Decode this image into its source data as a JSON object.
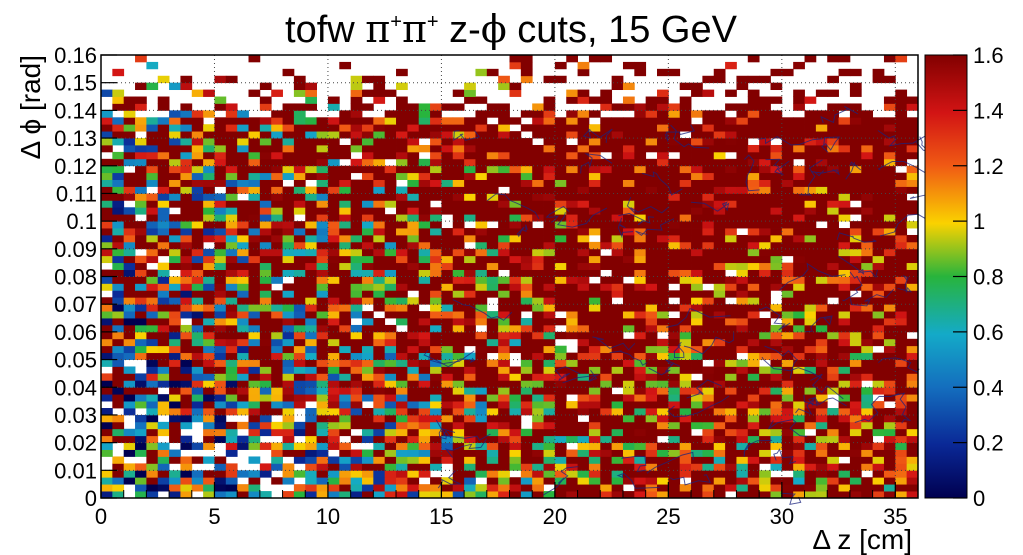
{
  "chart_data": {
    "type": "heatmap",
    "title_parts": {
      "prefix": "tofw ",
      "particle1": "π",
      "sup1": "+",
      "particle2": "π",
      "sup2": "+",
      "middle": "  z-",
      "phi": "ϕ",
      "suffix": " cuts, 15 GeV"
    },
    "xlabel": "Δ z [cm]",
    "ylabel": "Δ ϕ [rad]",
    "xlim": [
      0,
      36
    ],
    "ylim": [
      0,
      0.16
    ],
    "zlim": [
      0,
      1.6
    ],
    "x_ticks": [
      "0",
      "5",
      "10",
      "15",
      "20",
      "25",
      "30",
      "35"
    ],
    "y_ticks": [
      "0",
      "0.01",
      "0.02",
      "0.03",
      "0.04",
      "0.05",
      "0.06",
      "0.07",
      "0.08",
      "0.09",
      "0.1",
      "0.11",
      "0.12",
      "0.13",
      "0.14",
      "0.15",
      "0.16"
    ],
    "z_ticks": [
      "0",
      "0.2",
      "0.4",
      "0.6",
      "0.8",
      "1",
      "1.2",
      "1.4",
      "1.6"
    ],
    "grid": true,
    "colormap": "rainbow",
    "bins": {
      "nx": 72,
      "ny": 64
    },
    "trend": "ratio is low (about 0.2-0.5) at small Δz and small Δϕ, rising to about 1 and above for larger Δz and Δϕ; noisy cells saturate near 1.6; sparse empty cells near the top",
    "contours": "dark blue contour lines trace the ratio ≈ 1 level across Δz 15-35 cm"
  }
}
